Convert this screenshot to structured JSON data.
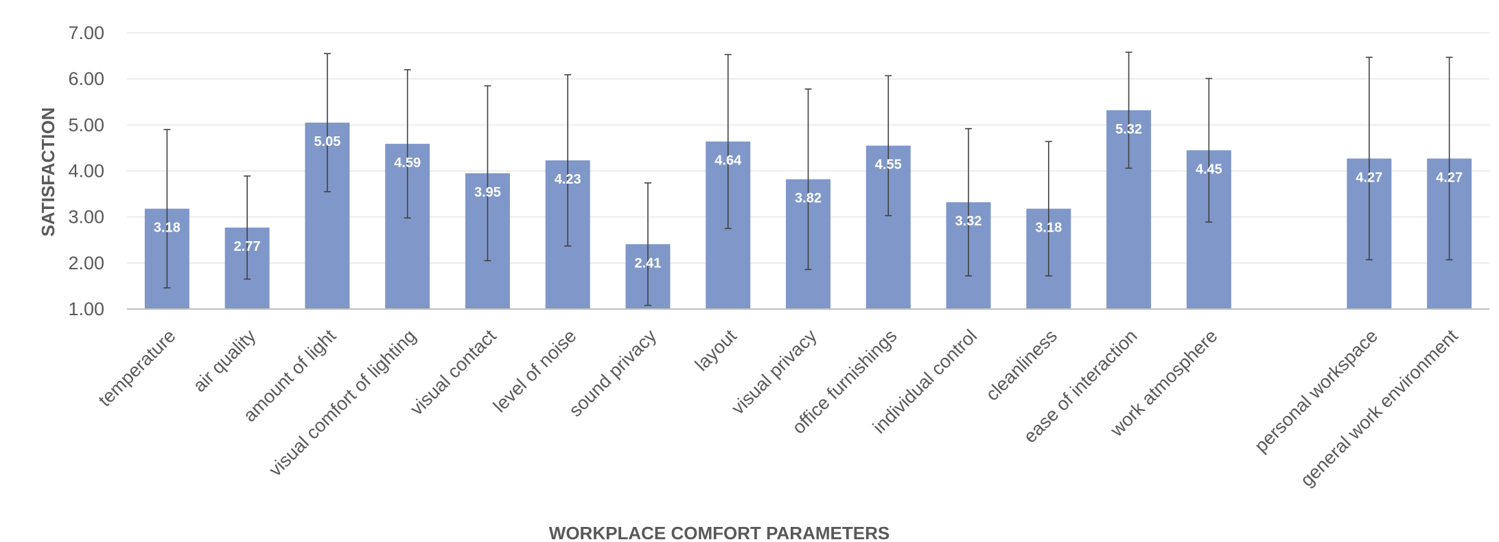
{
  "chart_data": {
    "type": "bar",
    "title": "",
    "xlabel": "WORKPLACE COMFORT PARAMETERS",
    "ylabel": "SATISFACTION",
    "ylim": [
      1.0,
      7.0
    ],
    "yticks": [
      "1.00",
      "2.00",
      "3.00",
      "4.00",
      "5.00",
      "6.00",
      "7.00"
    ],
    "grid": true,
    "legend": "none",
    "bar_color": "#7f97c9",
    "error_bar_color": "#404040",
    "categories": [
      "temperature",
      "air quality",
      "amount of light",
      "visual comfort of lighting",
      "visual contact",
      "level of noise",
      "sound privacy",
      "layout",
      "visual privacy",
      "office furnishings",
      "individual control",
      "cleanliness",
      "ease of interaction",
      "work atmosphere",
      "",
      "personal workspace",
      "general work environment"
    ],
    "values": [
      3.18,
      2.77,
      5.05,
      4.59,
      3.95,
      4.23,
      2.41,
      4.64,
      3.82,
      4.55,
      3.32,
      3.18,
      5.32,
      4.45,
      null,
      4.27,
      4.27
    ],
    "data_labels": [
      "3.18",
      "2.77",
      "5.05",
      "4.59",
      "3.95",
      "4.23",
      "2.41",
      "4.64",
      "3.82",
      "4.55",
      "3.32",
      "3.18",
      "5.32",
      "4.45",
      "",
      "4.27",
      "4.27"
    ],
    "error_low": [
      1.46,
      1.65,
      3.55,
      2.98,
      2.05,
      2.37,
      1.08,
      2.75,
      1.86,
      3.03,
      1.72,
      1.72,
      4.06,
      2.89,
      null,
      2.07,
      2.07
    ],
    "error_high": [
      4.9,
      3.89,
      6.55,
      6.2,
      5.85,
      6.09,
      3.74,
      6.53,
      5.78,
      6.07,
      4.92,
      4.64,
      6.58,
      6.01,
      null,
      6.47,
      6.47
    ]
  }
}
